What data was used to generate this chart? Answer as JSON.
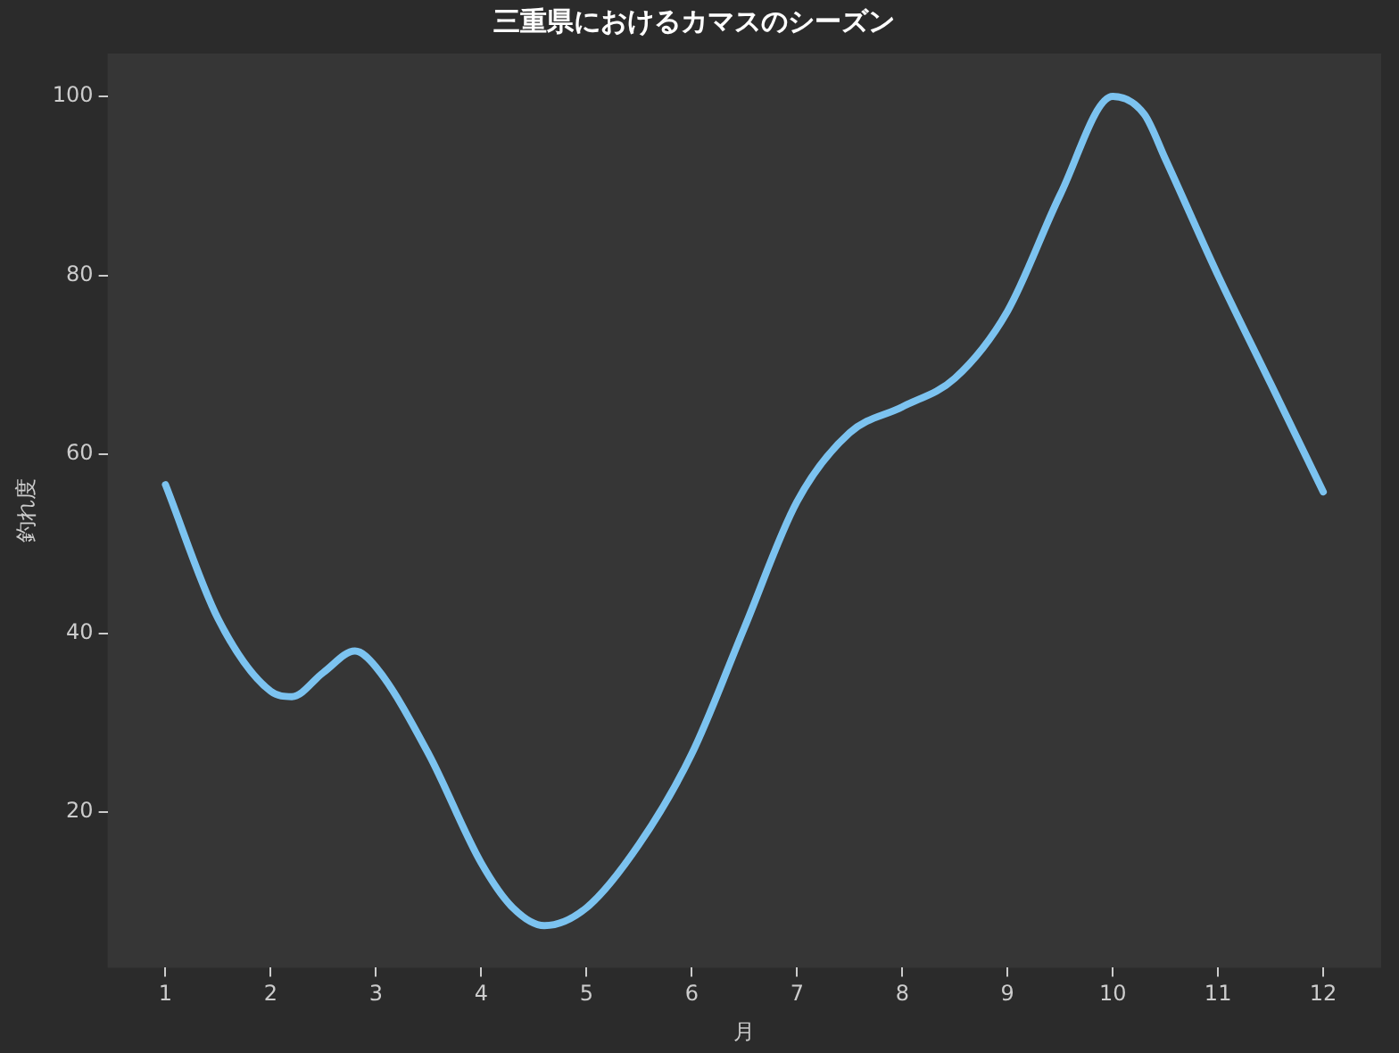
{
  "chart_data": {
    "type": "line",
    "title": "三重県におけるカマスのシーズン",
    "xlabel": "月",
    "ylabel": "釣れ度",
    "x": [
      1,
      1.5,
      2,
      2.2,
      2.5,
      2.8,
      3,
      3.5,
      4,
      4.3,
      4.6,
      5,
      5.5,
      6,
      6.5,
      7,
      7.5,
      8,
      8.5,
      9,
      9.5,
      10,
      10.3,
      10.5,
      11,
      11.5,
      12
    ],
    "series": [
      {
        "color": "#7cc3f0",
        "values": [
          56.6,
          41.6,
          33.5,
          32.9,
          35.6,
          38,
          36.2,
          26.5,
          14.3,
          9.3,
          7.3,
          9.3,
          16.4,
          26.5,
          40.6,
          54.7,
          62.4,
          65.3,
          68.5,
          76,
          89,
          100,
          98,
          93,
          80,
          67.9,
          55.8
        ]
      }
    ],
    "xlim": [
      0.45,
      12.55
    ],
    "xticks": [
      1,
      2,
      3,
      4,
      5,
      6,
      7,
      8,
      9,
      10,
      11,
      12
    ],
    "ylim": [
      2.6,
      104.8
    ],
    "yticks": [
      20,
      40,
      60,
      80,
      100
    ],
    "grid": false,
    "legend": false,
    "marker": "none",
    "line_style": "solid"
  }
}
